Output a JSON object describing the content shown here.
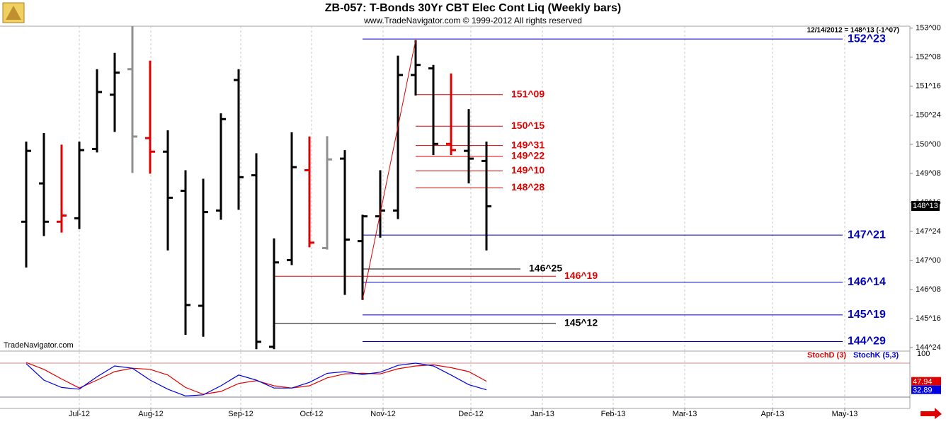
{
  "chart_data": [
    {
      "type": "ohlc",
      "title": "ZB-057:  T-Bonds 30Yr CBT Elec Cont Liq  (Weekly bars)",
      "subtitle": "www.TradeNavigator.com © 1999-2012 All rights reserved",
      "watermark": "TradeNavigator.com",
      "annotation": "12/14/2012 = 148^13 (-1^07)",
      "x": [
        0,
        1,
        2,
        3,
        4,
        5,
        6,
        7,
        8,
        9,
        10,
        11,
        12,
        13,
        14,
        15,
        16,
        17,
        18,
        19,
        20,
        21,
        22,
        23,
        24,
        25,
        26
      ],
      "open": [
        148.0,
        148.99,
        148.0,
        148.09,
        149.88,
        151.28,
        151.94,
        150.16,
        149.81,
        148.8,
        145.83,
        148.29,
        151.66,
        149.2,
        144.77,
        147.01,
        149.33,
        147.32,
        149.63,
        147.5,
        148.14,
        148.29,
        151.79,
        151.96,
        150.01,
        149.83,
        149.57
      ],
      "high": [
        150.07,
        150.29,
        149.99,
        150.07,
        151.94,
        152.36,
        153.05,
        152.16,
        150.36,
        149.33,
        149.11,
        150.8,
        151.94,
        149.77,
        147.57,
        150.31,
        150.2,
        150.21,
        149.85,
        148.18,
        149.33,
        152.29,
        152.69,
        152.05,
        151.83,
        150.91,
        150.07
      ],
      "low": [
        146.82,
        147.63,
        147.72,
        147.81,
        149.79,
        150.32,
        149.26,
        149.24,
        147.26,
        145.08,
        145.03,
        148.05,
        148.31,
        144.71,
        144.71,
        146.88,
        147.34,
        147.28,
        146.11,
        145.98,
        147.59,
        148.07,
        151.26,
        149.72,
        149.72,
        148.99,
        147.26
      ],
      "close": [
        149.83,
        148.0,
        148.16,
        149.85,
        151.35,
        151.85,
        150.2,
        149.81,
        148.62,
        145.85,
        148.25,
        150.65,
        149.15,
        144.9,
        146.95,
        149.41,
        147.46,
        149.61,
        147.54,
        148.14,
        148.29,
        151.79,
        152.05,
        150.01,
        149.85,
        149.63,
        148.4
      ],
      "colors": [
        "#000000",
        "#000000",
        "#e00000",
        "#000000",
        "#000000",
        "#000000",
        "#909090",
        "#e00000",
        "#000000",
        "#000000",
        "#000000",
        "#000000",
        "#000000",
        "#000000",
        "#000000",
        "#000000",
        "#e00000",
        "#909090",
        "#000000",
        "#000000",
        "#000000",
        "#000000",
        "#000000",
        "#000000",
        "#e00000",
        "#000000",
        "#000000"
      ],
      "xlim": [
        -1.48,
        49.92
      ],
      "ylim": [
        144.66,
        153.05
      ],
      "yticks": [
        {
          "value": 153.0,
          "label": "153^00"
        },
        {
          "value": 152.25,
          "label": "152^08"
        },
        {
          "value": 151.5,
          "label": "151^16"
        },
        {
          "value": 150.75,
          "label": "150^24"
        },
        {
          "value": 150.0,
          "label": "150^00"
        },
        {
          "value": 149.25,
          "label": "149^08"
        },
        {
          "value": 148.5,
          "label": "148^16"
        },
        {
          "value": 147.75,
          "label": "147^24"
        },
        {
          "value": 147.0,
          "label": "147^00"
        },
        {
          "value": 146.25,
          "label": "146^08"
        },
        {
          "value": 145.5,
          "label": "145^16"
        },
        {
          "value": 144.75,
          "label": "144^24"
        }
      ],
      "last_value": 148.40625,
      "last_value_label": "148^13",
      "levels": {
        "values": [
          152.71875,
          151.28125,
          150.46875,
          149.96875,
          149.6875,
          149.3125,
          148.875,
          147.65625,
          146.78125,
          146.59375,
          146.4375,
          145.59375,
          145.375,
          144.90625
        ],
        "value_labels": [
          "152^23",
          "151^09",
          "150^15",
          "149^31",
          "149^22",
          "149^10",
          "148^28",
          "147^21",
          "146^25",
          "146^19",
          "146^14",
          "145^19",
          "145^12",
          "144^29"
        ],
        "colors": [
          "#0000c0",
          "#e00000",
          "#e00000",
          "#e00000",
          "#e00000",
          "#e00000",
          "#e00000",
          "#0000c0",
          "#000000",
          "#e00000",
          "#0000c0",
          "#0000c0",
          "#000000",
          "#0000c0"
        ]
      }
    },
    {
      "type": "line",
      "x": [
        0,
        1,
        2,
        3,
        4,
        5,
        6,
        7,
        8,
        9,
        10,
        11,
        12,
        13,
        14,
        15,
        16,
        17,
        18,
        19,
        20,
        21,
        22,
        23,
        24,
        25,
        26
      ],
      "series": [
        {
          "name": "StochD (3)",
          "color": "#e00000",
          "values": [
            81,
            69,
            52,
            36,
            50,
            65,
            71,
            69,
            59,
            37,
            25,
            30,
            44,
            49,
            40,
            36,
            40,
            54,
            61,
            62,
            61,
            70,
            75,
            77,
            72,
            65,
            47.94
          ]
        },
        {
          "name": "StochK (5,3)",
          "color": "#0000e0",
          "values": [
            79,
            50,
            37,
            34,
            56,
            75,
            71,
            50,
            34,
            22,
            24,
            40,
            59,
            50,
            36,
            36,
            46,
            62,
            65,
            60,
            64,
            76,
            80,
            75,
            59,
            42,
            32.89
          ]
        }
      ],
      "ref_levels": [
        80,
        20
      ],
      "xlim": [
        -1.48,
        49.92
      ],
      "ylim": [
        0,
        100
      ],
      "yticks": [
        100
      ],
      "xticks": [
        {
          "value": 3.0,
          "label": "Jul-12"
        },
        {
          "value": 7.04,
          "label": "Aug-12"
        },
        {
          "value": 12.12,
          "label": "Sep-12"
        },
        {
          "value": 16.12,
          "label": "Oct-12"
        },
        {
          "value": 20.16,
          "label": "Nov-12"
        },
        {
          "value": 25.12,
          "label": "Dec-12"
        },
        {
          "value": 29.16,
          "label": "Jan-13"
        },
        {
          "value": 33.16,
          "label": "Feb-13"
        },
        {
          "value": 37.2,
          "label": "Mar-13"
        },
        {
          "value": 42.16,
          "label": "Apr-13"
        },
        {
          "value": 46.24,
          "label": "May-13"
        }
      ],
      "grid": true
    }
  ]
}
